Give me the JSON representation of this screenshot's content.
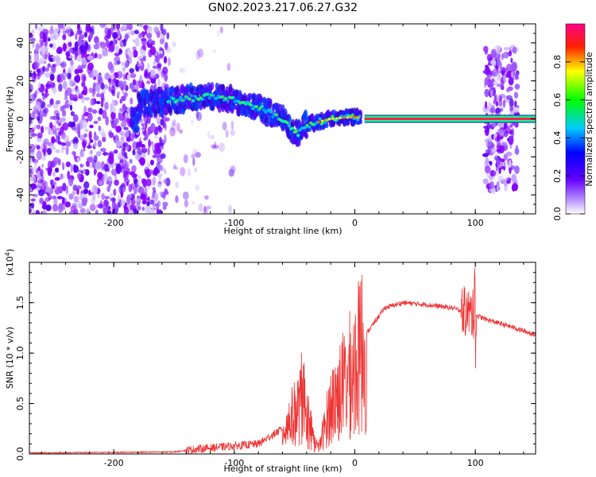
{
  "title": "GN02.2023.217.06.27.G32",
  "chart_data": [
    {
      "type": "heatmap",
      "name": "spectrogram",
      "xlabel": "Height of straight line (km)",
      "ylabel": "Frequency (Hz)",
      "xlim": [
        -270,
        150
      ],
      "ylim": [
        -50,
        50
      ],
      "x_ticks": [
        -200,
        -100,
        0,
        100
      ],
      "y_ticks": [
        -40,
        -20,
        0,
        20,
        40
      ],
      "colorbar": {
        "label": "Normalized spectral amplitude",
        "range": [
          0,
          1
        ],
        "ticks": [
          "0.0",
          "0.2",
          "0.4",
          "0.6",
          "0.8"
        ],
        "colormap": [
          "#ffffff",
          "#6600ff",
          "#0000ff",
          "#00ffff",
          "#00ff00",
          "#ffff00",
          "#ff0000",
          "#ff0066"
        ]
      },
      "ridge": {
        "description_points": [
          {
            "x": -180,
            "y": 8
          },
          {
            "x": -150,
            "y": 10
          },
          {
            "x": -120,
            "y": 12
          },
          {
            "x": -100,
            "y": 10
          },
          {
            "x": -80,
            "y": 6
          },
          {
            "x": -60,
            "y": 0
          },
          {
            "x": -48,
            "y": -8
          },
          {
            "x": -40,
            "y": -3
          },
          {
            "x": -20,
            "y": 0
          },
          {
            "x": 0,
            "y": 1
          },
          {
            "x": 10,
            "y": 0
          },
          {
            "x": 150,
            "y": 0
          }
        ]
      },
      "noise_regions": [
        {
          "x_range": [
            -270,
            -155
          ],
          "y_range": [
            -50,
            50
          ],
          "density": "high"
        },
        {
          "x_range": [
            -155,
            -100
          ],
          "y_range": [
            -50,
            50
          ],
          "density": "low"
        },
        {
          "x_range": [
            108,
            135
          ],
          "y_range": [
            -38,
            38
          ],
          "density": "high"
        }
      ]
    },
    {
      "type": "line",
      "name": "snr",
      "xlabel": "Height of straight line (km)",
      "ylabel": "SNR (10 * v/v)",
      "multiplier_label": "(x10",
      "multiplier_exp": "4",
      "multiplier_close": ")",
      "color": "#ee3333",
      "xlim": [
        -270,
        150
      ],
      "ylim": [
        0,
        1.9
      ],
      "x_ticks": [
        -200,
        -100,
        0,
        100
      ],
      "y_ticks": [
        "0.0",
        "0.5",
        "1.0",
        "1.5"
      ],
      "envelope": [
        {
          "x": -270,
          "y": 0.01
        },
        {
          "x": -150,
          "y": 0.02
        },
        {
          "x": -130,
          "y": 0.05
        },
        {
          "x": -100,
          "y": 0.08
        },
        {
          "x": -80,
          "y": 0.1
        },
        {
          "x": -60,
          "y": 0.25
        },
        {
          "x": -45,
          "y": 0.5
        },
        {
          "x": -35,
          "y": 0.15
        },
        {
          "x": -30,
          "y": 0.05
        },
        {
          "x": -20,
          "y": 0.5
        },
        {
          "x": -10,
          "y": 0.7
        },
        {
          "x": 0,
          "y": 0.9
        },
        {
          "x": 10,
          "y": 1.2
        },
        {
          "x": 25,
          "y": 1.45
        },
        {
          "x": 40,
          "y": 1.5
        },
        {
          "x": 60,
          "y": 1.48
        },
        {
          "x": 80,
          "y": 1.45
        },
        {
          "x": 95,
          "y": 1.4
        },
        {
          "x": 110,
          "y": 1.33
        },
        {
          "x": 130,
          "y": 1.26
        },
        {
          "x": 150,
          "y": 1.18
        }
      ]
    }
  ]
}
